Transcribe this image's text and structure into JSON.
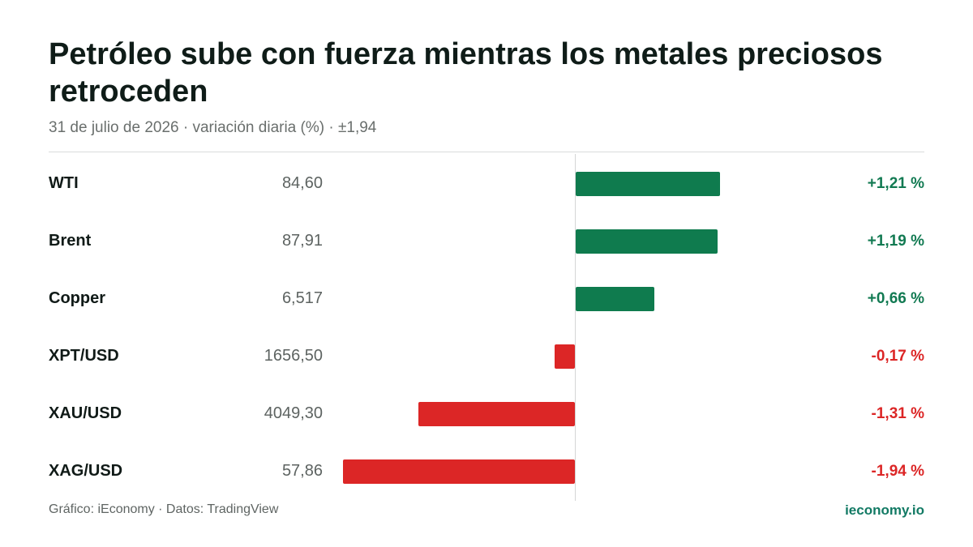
{
  "header": {
    "title": "Petróleo sube con fuerza mientras los metales preciosos retroceden",
    "subtitle": "31 de julio de 2026 · variación diaria (%) · ±1,94"
  },
  "colors": {
    "positive": "#0f7b4e",
    "negative": "#dc2626",
    "positive_text": "#127a52",
    "negative_text": "#dc2626"
  },
  "chart_data": {
    "type": "bar",
    "orientation": "horizontal",
    "scale_max_abs": 1.94,
    "categories": [
      "WTI",
      "Brent",
      "Copper",
      "XPT/USD",
      "XAU/USD",
      "XAG/USD"
    ],
    "prices": [
      "84,60",
      "87,91",
      "6,517",
      "1656,50",
      "4049,30",
      "57,86"
    ],
    "values": [
      1.21,
      1.19,
      0.66,
      -0.17,
      -1.31,
      -1.94
    ],
    "value_labels": [
      "+1,21 %",
      "+1,19 %",
      "+0,66 %",
      "-0,17 %",
      "-1,31 %",
      "-1,94 %"
    ]
  },
  "footer": {
    "source": "Gráfico: iEconomy · Datos: TradingView",
    "brand": "ieconomy.io"
  }
}
